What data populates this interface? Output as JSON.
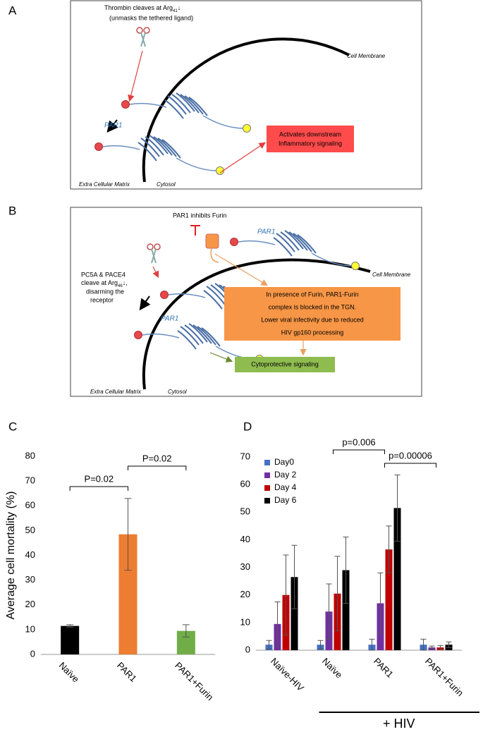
{
  "panel_labels": [
    "A",
    "B",
    "C",
    "D"
  ],
  "diagram_a": {
    "thrombin": {
      "text": "Thrombin cleaves at Arg",
      "sub": "41",
      "tail": "↓"
    },
    "unmask": "(unmasks the tethered ligand)",
    "membrane": "Cell Membrane",
    "receptor": "PAR1",
    "signal": [
      "Activates downstream",
      "Inflammatory signaling"
    ],
    "outside": "Extra Cellular Matrix",
    "inside": "Cytosol"
  },
  "diagram_b": {
    "inhibits": "PAR1 inhibits Furin",
    "receptor_top": "PAR1",
    "receptor": "PAR1",
    "cleave": [
      "PC5A & PACE4",
      {
        "text": "cleave at Arg",
        "sub": "46",
        "tail": "↓,"
      },
      "disarming the",
      "receptor"
    ],
    "membrane": "Cell Membrane",
    "furin_box": [
      "In presence of Furin, PAR1-Furin",
      "complex is blocked in the TGN.",
      "Lower viral infectivity due to reduced",
      "HIV gp160 processing"
    ],
    "signal": "Cytoprotective signaling",
    "outside": "Extra Cellular Matrix",
    "inside": "Cytosol"
  },
  "chart_data": [
    {
      "type": "bar",
      "ylabel": "Average cell mortality (%)",
      "categories": [
        "Naïve",
        "PAR1",
        "PAR1+Furin"
      ],
      "values": [
        11.5,
        48.5,
        9.5
      ],
      "errors": [
        0.5,
        14.5,
        2.5
      ],
      "colors": [
        "#000000",
        "#ed7d31",
        "#70ad47"
      ],
      "ylim": [
        0,
        80
      ],
      "yticks": [
        0,
        10,
        20,
        30,
        40,
        50,
        60,
        70,
        80
      ],
      "annotations": [
        "P=0.02",
        "P=0.02"
      ]
    },
    {
      "type": "grouped-bar",
      "categories": [
        "Naïve-HIV",
        "Naïve",
        "PAR1",
        "PAR1+Furin"
      ],
      "series": [
        {
          "name": "Day0",
          "color": "#4472c4",
          "values": [
            2,
            2,
            2,
            2
          ],
          "errors": [
            1.5,
            1.5,
            2,
            2
          ]
        },
        {
          "name": "Day 2",
          "color": "#7030a0",
          "values": [
            9.5,
            14,
            17,
            1
          ],
          "errors": [
            8,
            10,
            11,
            0.5
          ]
        },
        {
          "name": "Day 4",
          "color": "#c00000",
          "values": [
            20,
            20.5,
            36.5,
            1
          ],
          "errors": [
            14.5,
            13.5,
            8.5,
            0.7
          ]
        },
        {
          "name": "Day 6",
          "color": "#000000",
          "values": [
            26.5,
            29,
            51.5,
            2
          ],
          "errors": [
            11.5,
            12,
            12,
            1
          ]
        }
      ],
      "ylim": [
        0,
        70
      ],
      "yticks": [
        0,
        10,
        20,
        30,
        40,
        50,
        60,
        70
      ],
      "legend": "upper left",
      "annotations": [
        "p=0.006",
        "p=0.00006"
      ],
      "group_label": "+ HIV"
    }
  ]
}
